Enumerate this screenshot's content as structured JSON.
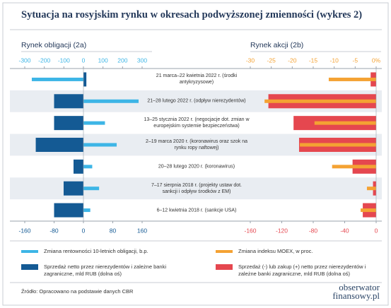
{
  "title": "Sytuacja na rosyjskim rynku w okresach podwyższonej zmienności (wykres 2)",
  "chart_data": [
    {
      "type": "bar",
      "orientation": "horizontal",
      "title": "Rynek obligacji (2a)",
      "categories": [
        "21 marca–22 kwietnia 2022 r. (środki antykryzysowe)",
        "21–28 lutego 2022 r. (odpływ nierezydentów)",
        "13–25 stycznia 2022 r. (negocjacje dot. zmian w europejskim systemie bezpieczeństwa)",
        "2–19 marca 2020 r. (koronawirus oraz szok na rynku ropy naftowej)",
        "20–28 lutego 2020 r. (koronawirus)",
        "7–17 sierpnia 2018 r. (projekty ustaw dot. sankcji i odpływ środków z EM)",
        "6–12 kwietnia 2018 r. (sankcje USA)"
      ],
      "xlim": [
        -300,
        300
      ],
      "xticks": [
        -300,
        -200,
        -100,
        0,
        100,
        200,
        300
      ],
      "x2lim": [
        -160,
        160
      ],
      "x2ticks": [
        -160,
        -80,
        0,
        80,
        160
      ],
      "series": [
        {
          "name": "Zmiana rentowności 10-letnich obligacji, b.p.",
          "color": "#3db5e6",
          "values": [
            -264,
            282,
            110,
            170,
            45,
            80,
            35
          ]
        },
        {
          "name": "Sprzedaż netto przez nierezydentów i zależne banki zagraniczne, mld RUB (dolna oś)",
          "color": "#145a94",
          "axis": "x2",
          "values": [
            8,
            -80,
            -80,
            -130,
            -27,
            -54,
            -80
          ]
        }
      ]
    },
    {
      "type": "bar",
      "orientation": "horizontal",
      "title": "Rynek akcji (2b)",
      "xlim": [
        -30,
        0
      ],
      "xticks": [
        -30,
        -25,
        -20,
        -15,
        -10,
        -5,
        {
          "value": 0,
          "label": "0%"
        }
      ],
      "x2lim": [
        -160,
        0
      ],
      "x2ticks": [
        -160,
        -120,
        -80,
        -40,
        0
      ],
      "series": [
        {
          "name": "Zmiana indeksu MOEX, w proc.",
          "color": "#f4a233",
          "values": [
            -11.3,
            -26.6,
            -14.7,
            -18.2,
            -10.5,
            -2.2,
            -3.7
          ]
        },
        {
          "name": "Sprzedaż (-) lub zakup (+) netto przez nierezydentów i zależne banki zagraniczne, mld RUB (dolna oś)",
          "color": "#e5474f",
          "axis": "x2",
          "values": [
            -7,
            -137,
            -105,
            -98,
            -30,
            -4,
            -17
          ]
        }
      ]
    }
  ],
  "footer": {
    "source": "Źródło: Opracowano na podstawie danych CBR",
    "logo": [
      "obserwator",
      "finansowy.pl"
    ]
  }
}
